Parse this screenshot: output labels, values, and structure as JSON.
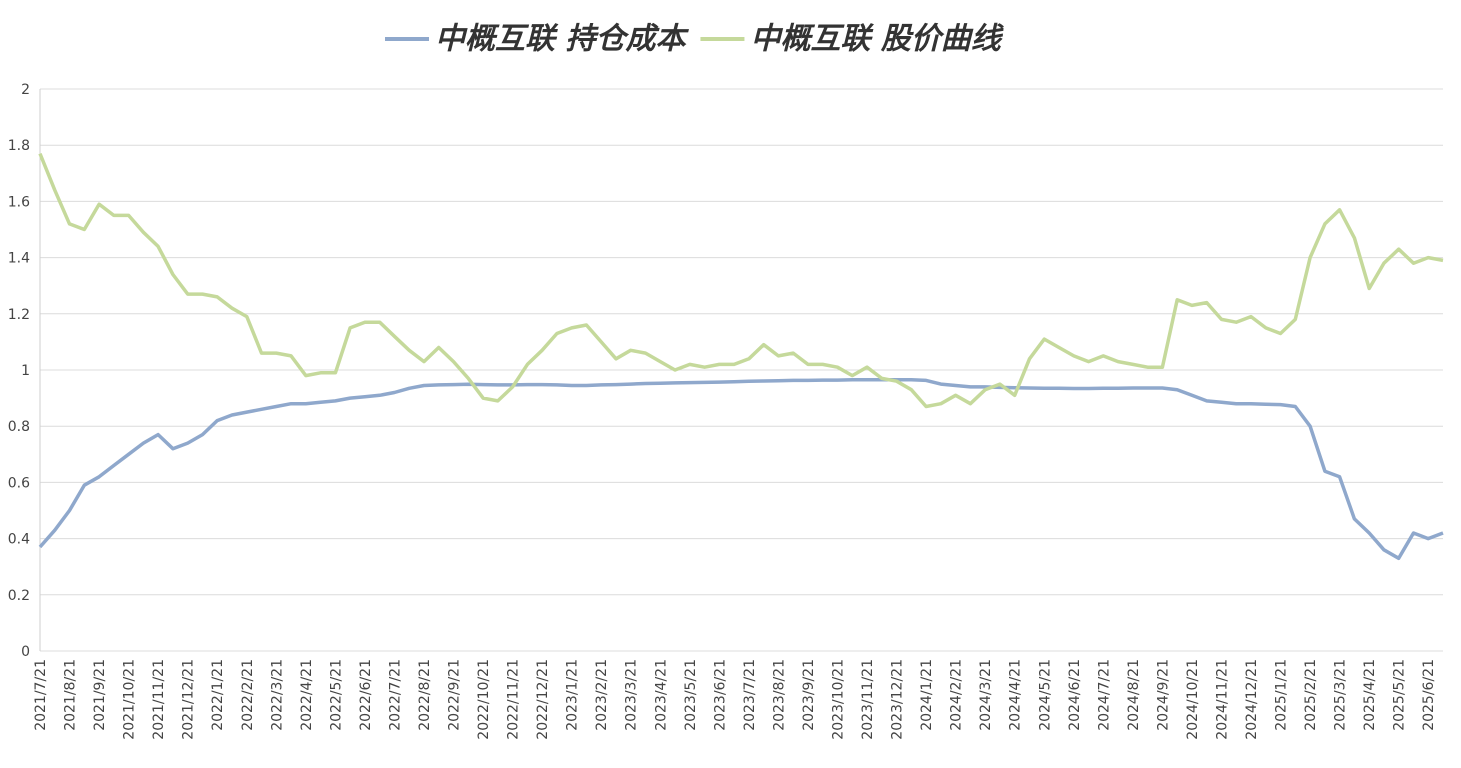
{
  "chart_data": {
    "type": "line",
    "categories": [
      "2021/7/21",
      null,
      "2021/8/21",
      null,
      "2021/9/21",
      null,
      "2021/10/21",
      null,
      "2021/11/21",
      null,
      "2021/12/21",
      null,
      "2022/1/21",
      null,
      "2022/2/21",
      null,
      "2022/3/21",
      null,
      "2022/4/21",
      null,
      "2022/5/21",
      null,
      "2022/6/21",
      null,
      "2022/7/21",
      null,
      "2022/8/21",
      null,
      "2022/9/21",
      null,
      "2022/10/21",
      null,
      "2022/11/21",
      null,
      "2022/12/21",
      null,
      "2023/1/21",
      null,
      "2023/2/21",
      null,
      "2023/3/21",
      null,
      "2023/4/21",
      null,
      "2023/5/21",
      null,
      "2023/6/21",
      null,
      "2023/7/21",
      null,
      "2023/8/21",
      null,
      "2023/9/21",
      null,
      "2023/10/21",
      null,
      "2023/11/21",
      null,
      "2023/12/21",
      null,
      "2024/1/21",
      null,
      "2024/2/21",
      null,
      "2024/3/21",
      null,
      "2024/4/21",
      null,
      "2024/5/21",
      null,
      "2024/6/21",
      null,
      "2024/7/21",
      null,
      "2024/8/21",
      null,
      "2024/9/21",
      null,
      "2024/10/21",
      null,
      "2024/11/21",
      null,
      "2024/12/21",
      null,
      "2025/1/21",
      null,
      "2025/2/21",
      null,
      "2025/3/21",
      null,
      "2025/4/21",
      null,
      "2025/5/21",
      null,
      "2025/6/21",
      null
    ],
    "series": [
      {
        "name": "中概互联 持仓成本",
        "color": "#8fa8cc",
        "values": [
          0.37,
          0.43,
          0.5,
          0.59,
          0.62,
          0.66,
          0.7,
          0.74,
          0.77,
          0.72,
          0.74,
          0.77,
          0.82,
          0.84,
          0.85,
          0.86,
          0.87,
          0.88,
          0.88,
          0.885,
          0.89,
          0.9,
          0.905,
          0.91,
          0.92,
          0.935,
          0.945,
          0.947,
          0.948,
          0.949,
          0.948,
          0.947,
          0.947,
          0.948,
          0.948,
          0.947,
          0.945,
          0.945,
          0.947,
          0.948,
          0.95,
          0.952,
          0.953,
          0.954,
          0.955,
          0.956,
          0.957,
          0.958,
          0.96,
          0.961,
          0.962,
          0.963,
          0.963,
          0.964,
          0.964,
          0.965,
          0.965,
          0.965,
          0.965,
          0.965,
          0.963,
          0.95,
          0.945,
          0.94,
          0.94,
          0.938,
          0.937,
          0.936,
          0.935,
          0.935,
          0.934,
          0.934,
          0.935,
          0.935,
          0.936,
          0.936,
          0.936,
          0.93,
          0.91,
          0.89,
          0.885,
          0.88,
          0.88,
          0.878,
          0.877,
          0.87,
          0.8,
          0.64,
          0.62,
          0.47,
          0.42,
          0.36,
          0.33,
          0.42,
          0.4,
          0.42
        ]
      },
      {
        "name": "中概互联 股价曲线",
        "color": "#c5d99b",
        "values": [
          1.77,
          1.64,
          1.52,
          1.5,
          1.59,
          1.55,
          1.55,
          1.49,
          1.44,
          1.34,
          1.27,
          1.27,
          1.26,
          1.22,
          1.19,
          1.06,
          1.06,
          1.05,
          0.98,
          0.99,
          0.99,
          1.15,
          1.17,
          1.17,
          1.12,
          1.07,
          1.03,
          1.08,
          1.03,
          0.97,
          0.9,
          0.89,
          0.94,
          1.02,
          1.07,
          1.13,
          1.15,
          1.16,
          1.1,
          1.04,
          1.07,
          1.06,
          1.03,
          1.0,
          1.02,
          1.01,
          1.02,
          1.02,
          1.04,
          1.09,
          1.05,
          1.06,
          1.02,
          1.02,
          1.01,
          0.98,
          1.01,
          0.97,
          0.96,
          0.93,
          0.87,
          0.88,
          0.91,
          0.88,
          0.93,
          0.95,
          0.91,
          1.04,
          1.11,
          1.08,
          1.05,
          1.03,
          1.05,
          1.03,
          1.02,
          1.01,
          1.01,
          1.25,
          1.23,
          1.24,
          1.18,
          1.17,
          1.19,
          1.15,
          1.13,
          1.18,
          1.4,
          1.52,
          1.57,
          1.47,
          1.29,
          1.38,
          1.43,
          1.38,
          1.4,
          1.39
        ]
      }
    ],
    "ylim": [
      0,
      2
    ],
    "yticks": [
      0,
      0.2,
      0.4,
      0.6,
      0.8,
      1,
      1.2,
      1.4,
      1.6,
      1.8,
      2
    ],
    "grid": true,
    "legend": "top"
  }
}
